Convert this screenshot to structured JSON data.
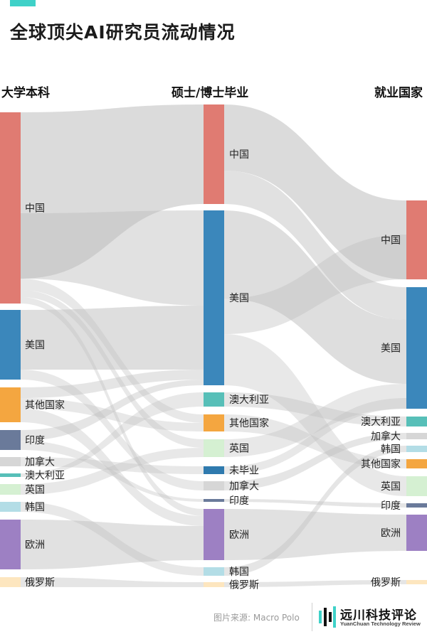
{
  "header": {
    "title": "全球顶尖AI研究员流动情况"
  },
  "columns": {
    "left": "大学本科",
    "middle": "硕士/博士毕业",
    "right": "就业国家"
  },
  "colors": {
    "china": "#e07b72",
    "us": "#3b87bb",
    "other": "#f4a640",
    "india": "#6a7a9a",
    "canada": "#d6d6d6",
    "australia": "#57bfb8",
    "uk": "#d5f0d2",
    "korea": "#b3dde6",
    "europe": "#9d80c3",
    "russia": "#fde6bf",
    "nograd": "#2f7aae",
    "flow": "#bdbdbd"
  },
  "nodes": {
    "left": [
      {
        "label": "中国",
        "color": "china"
      },
      {
        "label": "美国",
        "color": "us"
      },
      {
        "label": "其他国家",
        "color": "other"
      },
      {
        "label": "印度",
        "color": "india"
      },
      {
        "label": "加拿大",
        "color": "canada"
      },
      {
        "label": "澳大利亚",
        "color": "australia"
      },
      {
        "label": "英国",
        "color": "uk"
      },
      {
        "label": "韩国",
        "color": "korea"
      },
      {
        "label": "欧洲",
        "color": "europe"
      },
      {
        "label": "俄罗斯",
        "color": "russia"
      }
    ],
    "middle": [
      {
        "label": "中国",
        "color": "china"
      },
      {
        "label": "美国",
        "color": "us"
      },
      {
        "label": "澳大利亚",
        "color": "australia"
      },
      {
        "label": "其他国家",
        "color": "other"
      },
      {
        "label": "英国",
        "color": "uk"
      },
      {
        "label": "未毕业",
        "color": "nograd"
      },
      {
        "label": "加拿大",
        "color": "canada"
      },
      {
        "label": "印度",
        "color": "india"
      },
      {
        "label": "欧洲",
        "color": "europe"
      },
      {
        "label": "韩国",
        "color": "korea"
      },
      {
        "label": "俄罗斯",
        "color": "russia"
      }
    ],
    "right": [
      {
        "label": "中国",
        "color": "china"
      },
      {
        "label": "美国",
        "color": "us"
      },
      {
        "label": "澳大利亚",
        "color": "australia"
      },
      {
        "label": "加拿大",
        "color": "canada"
      },
      {
        "label": "韩国",
        "color": "korea"
      },
      {
        "label": "其他国家",
        "color": "other"
      },
      {
        "label": "英国",
        "color": "uk"
      },
      {
        "label": "印度",
        "color": "india"
      },
      {
        "label": "欧洲",
        "color": "europe"
      },
      {
        "label": "俄罗斯",
        "color": "russia"
      }
    ]
  },
  "footer": {
    "source": "图片来源: Macro Polo",
    "brand_name": "远川科技评论",
    "brand_sub": "YuanChuan Technology Review"
  }
}
